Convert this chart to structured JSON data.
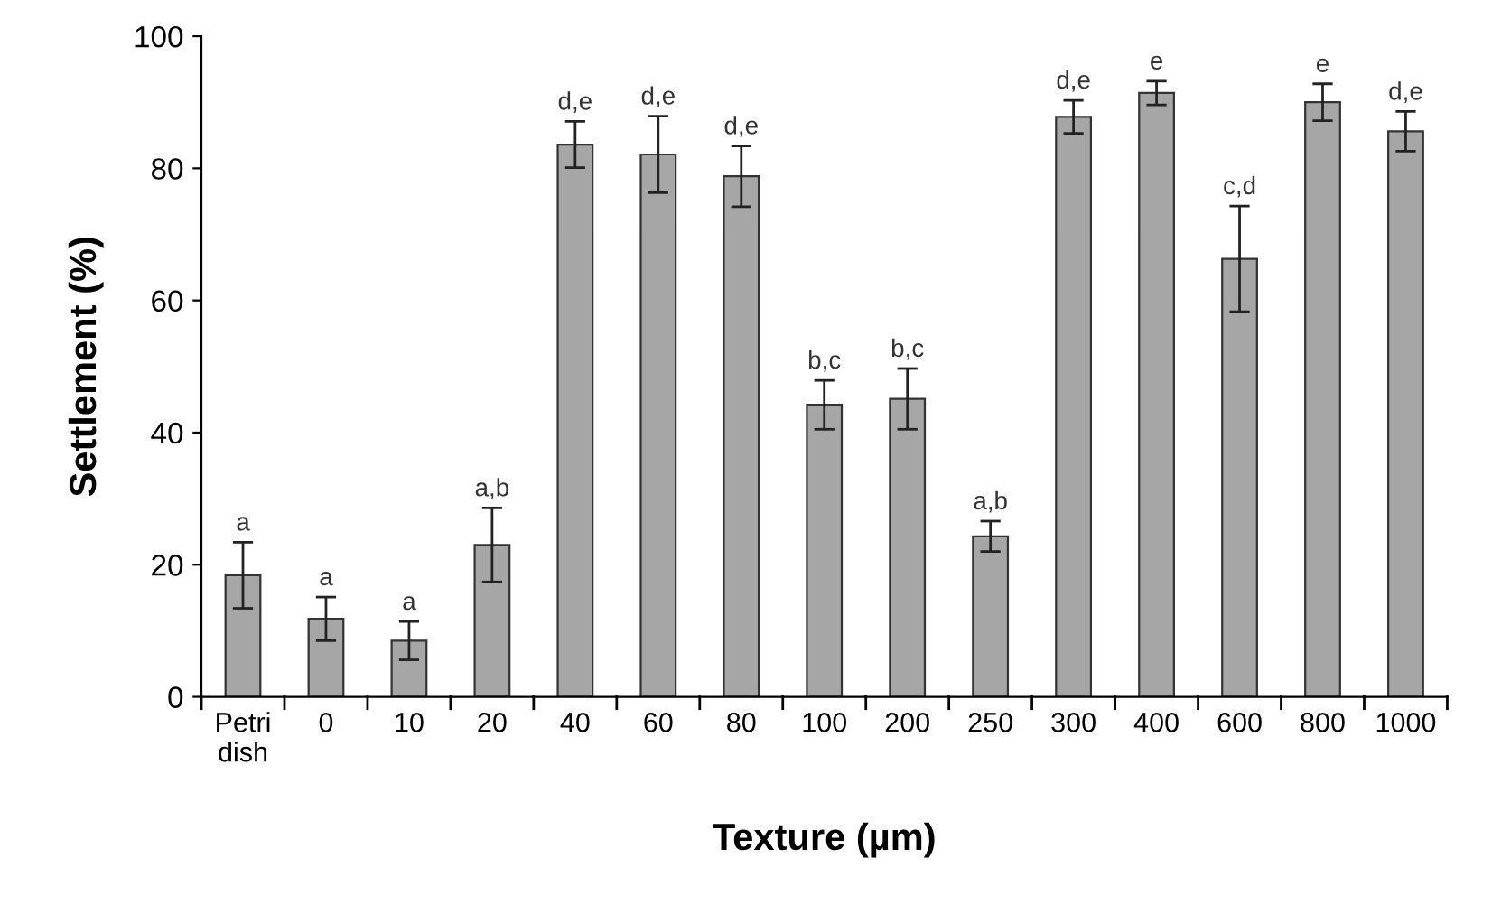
{
  "chart_data": {
    "type": "bar",
    "xlabel": "Texture (µm)",
    "ylabel": "Settlement (%)",
    "categories": [
      "Petri\ndish",
      "0",
      "10",
      "20",
      "40",
      "60",
      "80",
      "100",
      "200",
      "250",
      "300",
      "400",
      "600",
      "800",
      "1000"
    ],
    "values": [
      18.4,
      11.8,
      8.5,
      23.0,
      83.6,
      82.1,
      78.8,
      44.2,
      45.1,
      24.3,
      87.8,
      91.4,
      66.3,
      90.0,
      85.6
    ],
    "errors": [
      5,
      3.3,
      2.9,
      5.6,
      3.5,
      5.8,
      4.6,
      3.7,
      4.6,
      2.3,
      2.5,
      1.8,
      8,
      2.8,
      3
    ],
    "value_labels": [
      "a",
      "a",
      "a",
      "a,b",
      "d,e",
      "d,e",
      "d,e",
      "b,c",
      "b,c",
      "a,b",
      "d,e",
      "e",
      "c,d",
      "e",
      "d,e"
    ],
    "color": "#a6a6a6",
    "ylim": [
      0,
      100
    ],
    "yticks": [
      0,
      20,
      40,
      60,
      80,
      100
    ],
    "grid": false
  }
}
